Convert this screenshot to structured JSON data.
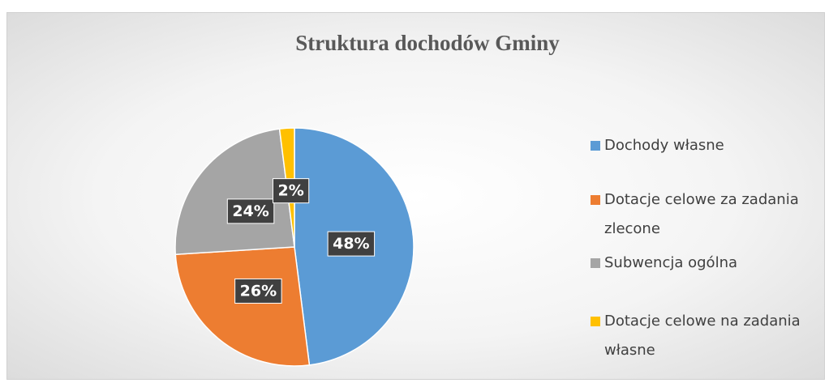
{
  "chart_data": {
    "type": "pie",
    "title": "Struktura dochodów Gminy",
    "categories": [
      "Dochody własne",
      "Dotacje celowe za zadania zlecone",
      "Subwencja ogólna",
      "Dotacje celowe na zadania własne"
    ],
    "values": [
      48,
      26,
      24,
      2
    ],
    "value_labels": [
      "48%",
      "26%",
      "24%",
      "2%"
    ],
    "colors": [
      "#5b9bd5",
      "#ed7d31",
      "#a5a5a5",
      "#ffc000"
    ],
    "legend": "right"
  }
}
